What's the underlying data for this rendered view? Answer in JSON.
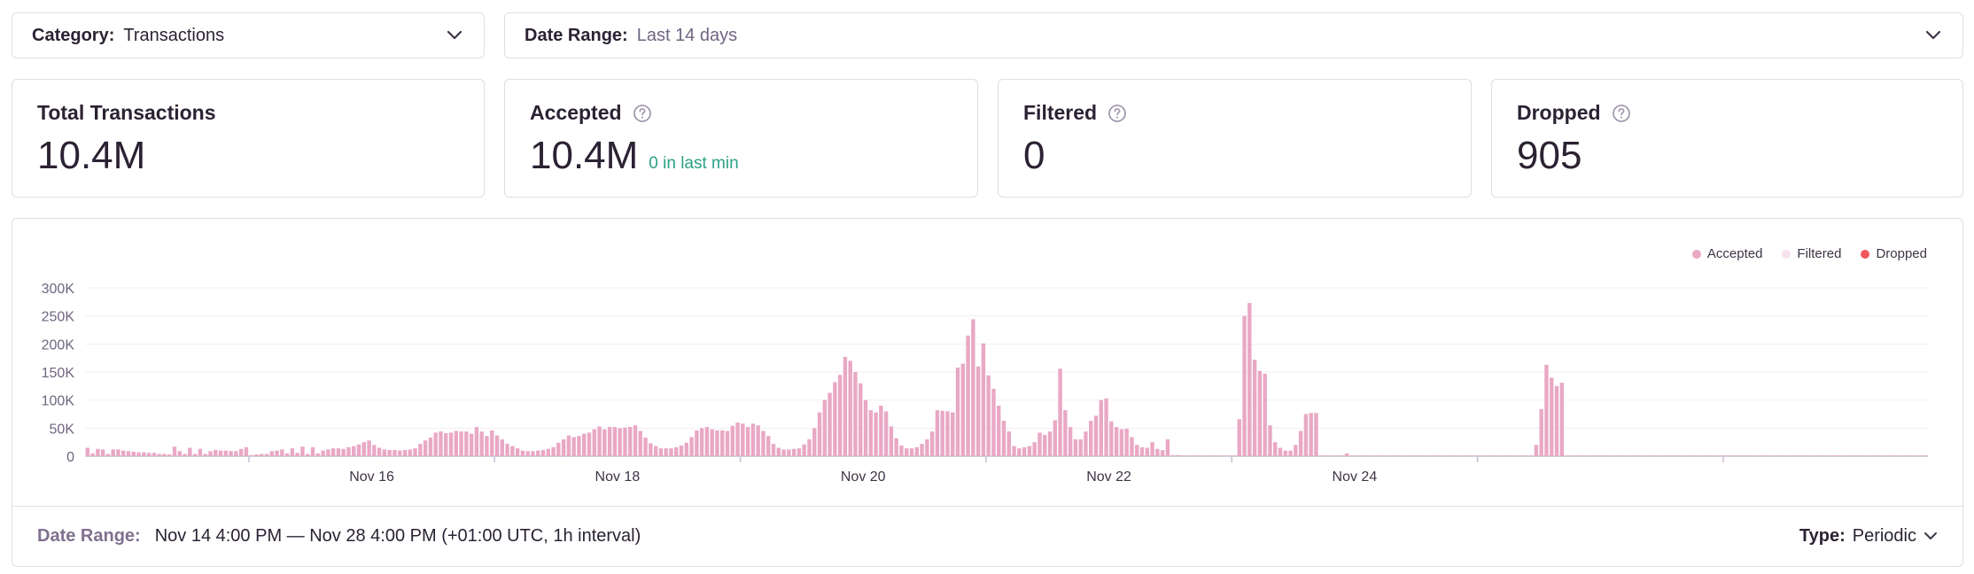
{
  "filters": {
    "category": {
      "label": "Category:",
      "value": "Transactions"
    },
    "date_range": {
      "label": "Date Range:",
      "value": "Last 14 days"
    }
  },
  "stats": {
    "total": {
      "title": "Total Transactions",
      "value": "10.4M"
    },
    "accepted": {
      "title": "Accepted",
      "value": "10.4M",
      "sub": "0 in last min"
    },
    "filtered": {
      "title": "Filtered",
      "value": "0"
    },
    "dropped": {
      "title": "Dropped",
      "value": "905"
    }
  },
  "legend": [
    {
      "name": "Accepted",
      "color": "#e9a8c4"
    },
    {
      "name": "Filtered",
      "color": "#f6e2ec"
    },
    {
      "name": "Dropped",
      "color": "#f0585f"
    }
  ],
  "footer": {
    "date_label": "Date Range:",
    "date_value": "Nov 14 4:00 PM — Nov 28 4:00 PM (+01:00 UTC, 1h interval)",
    "type_label": "Type:",
    "type_value": "Periodic"
  },
  "icons": {
    "chevron": "chevron-down-icon",
    "help": "question-circle-icon"
  },
  "chart_data": {
    "type": "bar",
    "interval": "1h",
    "ylim": [
      0,
      300000
    ],
    "yticks": [
      0,
      50000,
      100000,
      150000,
      200000,
      250000,
      300000
    ],
    "ytick_labels": [
      "0",
      "50K",
      "100K",
      "150K",
      "200K",
      "250K",
      "300K"
    ],
    "xtick_labels": [
      {
        "label": "Nov 16",
        "hour_index": 56
      },
      {
        "label": "Nov 18",
        "hour_index": 104
      },
      {
        "label": "Nov 20",
        "hour_index": 152
      },
      {
        "label": "Nov 22",
        "hour_index": 200
      },
      {
        "label": "Nov 24",
        "hour_index": 248
      }
    ],
    "day_boundaries": [
      32,
      80,
      128,
      176,
      224,
      272,
      320
    ],
    "grid": true,
    "legend_position": "top-right",
    "series": [
      {
        "name": "Accepted",
        "color": "#e9a8c4",
        "values": [
          15000,
          5000,
          13000,
          12000,
          4000,
          12000,
          12000,
          10000,
          9000,
          8000,
          7000,
          7000,
          6000,
          6000,
          4000,
          4000,
          3000,
          17000,
          9000,
          4000,
          15000,
          4000,
          13000,
          4000,
          9000,
          11000,
          10000,
          10000,
          9000,
          9000,
          13000,
          16000,
          2000,
          3000,
          4000,
          4000,
          9000,
          10000,
          12000,
          5000,
          14000,
          6000,
          17000,
          4000,
          16000,
          5000,
          10000,
          12000,
          14000,
          14000,
          13000,
          16000,
          18000,
          21000,
          25000,
          28000,
          20000,
          15000,
          12000,
          11000,
          11000,
          10000,
          11000,
          12000,
          14000,
          22000,
          28000,
          33000,
          42000,
          44000,
          41000,
          42000,
          45000,
          44000,
          44000,
          40000,
          52000,
          44000,
          36000,
          46000,
          37000,
          30000,
          22000,
          18000,
          14000,
          10000,
          9000,
          9000,
          10000,
          11000,
          13000,
          16000,
          24000,
          30000,
          37000,
          34000,
          36000,
          40000,
          42000,
          48000,
          53000,
          48000,
          52000,
          52000,
          50000,
          51000,
          52000,
          55000,
          45000,
          33000,
          23000,
          18000,
          14000,
          14000,
          14000,
          16000,
          19000,
          24000,
          34000,
          46000,
          50000,
          52000,
          48000,
          46000,
          46000,
          45000,
          54000,
          60000,
          58000,
          52000,
          58000,
          55000,
          45000,
          36000,
          22000,
          15000,
          12000,
          12000,
          13000,
          14000,
          21000,
          30000,
          50000,
          78000,
          100000,
          113000,
          132000,
          145000,
          177000,
          170000,
          150000,
          130000,
          100000,
          82000,
          78000,
          90000,
          80000,
          53000,
          32000,
          19000,
          14000,
          14000,
          16000,
          22000,
          30000,
          44000,
          82000,
          81000,
          80000,
          78000,
          158000,
          165000,
          215000,
          244000,
          160000,
          201000,
          144000,
          120000,
          90000,
          63000,
          44000,
          18000,
          14000,
          16000,
          18000,
          25000,
          42000,
          38000,
          44000,
          64000,
          156000,
          82000,
          52000,
          30000,
          30000,
          44000,
          63000,
          72000,
          100000,
          103000,
          62000,
          52000,
          48000,
          49000,
          34000,
          20000,
          16000,
          15000,
          25000,
          13000,
          11000,
          30000,
          2000,
          2000,
          1000,
          1000,
          1000,
          1000,
          1000,
          1000,
          1000,
          1000,
          1000,
          1000,
          1000,
          66000,
          250000,
          273000,
          172000,
          152000,
          147000,
          55000,
          25000,
          15000,
          10000,
          10000,
          20000,
          45000,
          75000,
          77000,
          77000,
          1000,
          1000,
          1000,
          1000,
          1000,
          5000,
          1000,
          1000,
          1000,
          1000,
          1000,
          1000,
          1000,
          1000,
          1000,
          1000,
          1000,
          1000,
          1000,
          1000,
          1000,
          1000,
          1000,
          1000,
          1000,
          1000,
          1000,
          1000,
          1000,
          1000,
          1000,
          1000,
          1000,
          1000,
          1000,
          1000,
          1000,
          1000,
          1000,
          1000,
          1000,
          1000,
          20000,
          84000,
          163000,
          140000,
          125000,
          131000,
          1000,
          1000,
          1000,
          1000,
          1000,
          1000,
          1000,
          1000,
          1000,
          1000,
          1000,
          1000,
          1000,
          1000,
          1000,
          1000,
          1000,
          1000,
          1000,
          1000,
          1000,
          1000,
          1000,
          1000,
          1000,
          1000,
          1000,
          1000,
          1000,
          1000,
          1000,
          1000,
          1000,
          1000,
          1000,
          1000,
          1000,
          1000,
          1000,
          1000,
          1000,
          1000,
          1000,
          1000,
          1000,
          1000,
          1000,
          1000,
          1000,
          1000,
          1000,
          1000,
          1000,
          1000,
          1000,
          1000,
          1000,
          1000,
          1000,
          1000,
          1000,
          1000,
          1000,
          1000,
          1000,
          1000,
          1000,
          1000,
          1000,
          1000,
          1000
        ]
      }
    ]
  }
}
